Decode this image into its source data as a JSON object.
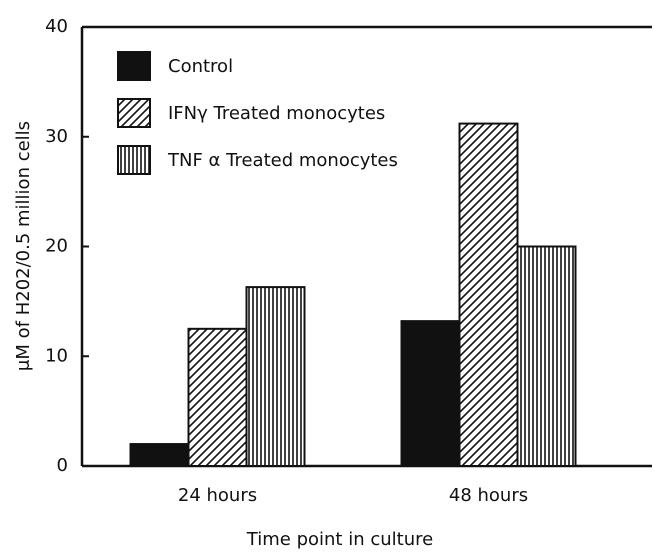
{
  "chart_data": {
    "type": "bar",
    "categories": [
      "24 hours",
      "48 hours"
    ],
    "series": [
      {
        "name": "Control",
        "color": "#111111",
        "pattern": "solid",
        "values": [
          2,
          13.2
        ]
      },
      {
        "name": "IFNγ Treated monocytes",
        "color": "#111111",
        "pattern": "diagonal",
        "values": [
          12.5,
          31.2
        ]
      },
      {
        "name": "TNF α Treated monocytes",
        "color": "#111111",
        "pattern": "vertical",
        "values": [
          16.3,
          20
        ]
      }
    ],
    "xlabel": "Time point in culture",
    "ylabel": "μM of H202/0.5 million cells",
    "ylim": [
      0,
      40
    ],
    "yticks": [
      0,
      10,
      20,
      30,
      40
    ],
    "legend": "upper left"
  }
}
